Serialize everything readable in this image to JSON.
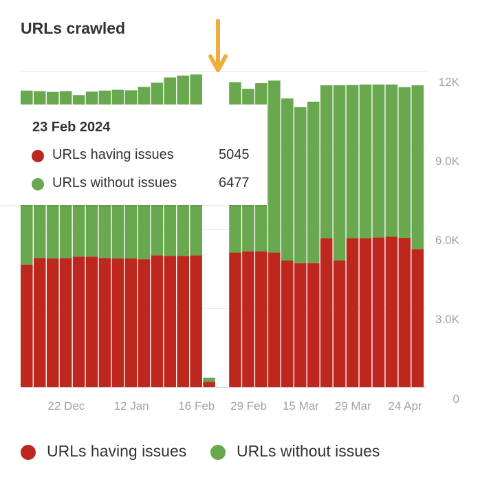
{
  "chart_data": {
    "type": "bar",
    "stacked": true,
    "title": "URLs crawled",
    "x_tick_labels": [
      "22 Dec",
      "12 Jan",
      "16 Feb",
      "29 Feb",
      "15 Mar",
      "29 Mar",
      "24 Apr"
    ],
    "y_tick_labels": [
      "0",
      "3.0K",
      "6.0K",
      "9.0K",
      "12K"
    ],
    "ylim": [
      0,
      12000
    ],
    "grid": true,
    "legend_position": "bottom",
    "series": [
      {
        "name": "URLs having issues",
        "color": "#bd271e",
        "values": [
          4650,
          4900,
          4880,
          4890,
          4950,
          4950,
          4900,
          4880,
          4880,
          4850,
          5000,
          4980,
          4980,
          5000,
          200,
          null,
          5100,
          5150,
          5150,
          5100,
          4800,
          4700,
          4700,
          5650,
          4800,
          5650,
          5650,
          5680,
          5700,
          5660,
          5230
        ]
      },
      {
        "name": "URLs without issues",
        "color": "#6aa84f",
        "values": [
          6600,
          6330,
          6320,
          6340,
          6130,
          6260,
          6350,
          6400,
          6380,
          6540,
          6550,
          6770,
          6840,
          6860,
          150,
          null,
          6470,
          6170,
          6380,
          6530,
          6150,
          5920,
          6130,
          5800,
          6650,
          5810,
          5830,
          5800,
          5780,
          5720,
          6220
        ]
      }
    ],
    "tooltip": {
      "date": "23 Feb 2024",
      "rows": [
        {
          "label": "URLs having issues",
          "value": "5045",
          "color": "#bd271e"
        },
        {
          "label": "URLs without issues",
          "value": "6477",
          "color": "#6aa84f"
        }
      ]
    },
    "annotation": {
      "type": "arrow",
      "color": "#f0ad3a",
      "points_to_bar_index": 16
    }
  }
}
